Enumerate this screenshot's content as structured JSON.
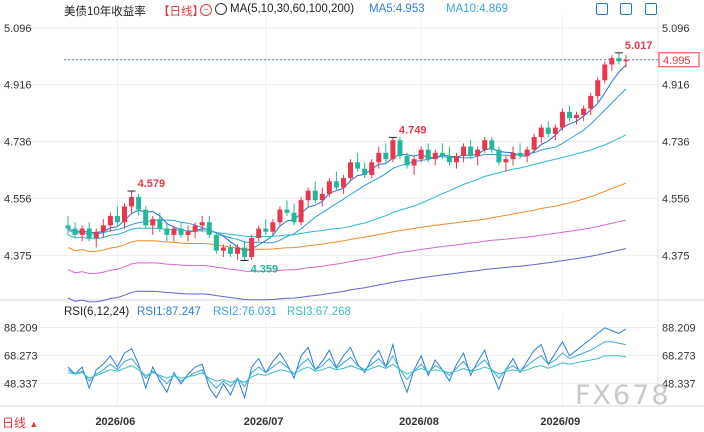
{
  "header": {
    "title": "美债10年收益率",
    "period_tag": "【日线】",
    "ma_label": "MA(5,10,30,60,100,200)",
    "ma5": "MA5:4.953",
    "ma10": "MA10:4.869"
  },
  "rsi_header": {
    "label": "RSI(6,12,24)",
    "rsi1": "RSI1:87.247",
    "rsi2": "RSI2:76.031",
    "rsi3": "RSI3:67.268"
  },
  "footer": {
    "tab": "日线",
    "watermark": "FX678"
  },
  "colors": {
    "up": "#e8374e",
    "down": "#25b79c",
    "ma5": "#1f6fd1",
    "ma10": "#2f9bd8",
    "ma30": "#2fb7c7",
    "ma60": "#ef8a2c",
    "ma100": "#d667cf",
    "ma200": "#6363d8",
    "rsi1": "#2a7fd4",
    "rsi2": "#3aa6dc",
    "rsi3": "#39bfc4"
  },
  "icons": [
    "fullscreen-icon",
    "grid-icon",
    "settings-icon",
    "expand-icon"
  ],
  "chart_data": [
    {
      "type": "candlestick",
      "title": "美债10年收益率",
      "ylim": [
        4.24,
        5.14
      ],
      "y_ticks": [
        "5.096",
        "4.916",
        "4.736",
        "4.556",
        "4.375"
      ],
      "x_ticks": [
        "2026/06",
        "2026/07",
        "2026/08",
        "2026/09"
      ],
      "last_value": "4.995",
      "annotations": [
        {
          "label": "5.017",
          "index": 78
        },
        {
          "label": "4.749",
          "index": 46
        },
        {
          "label": "4.579",
          "index": 9
        },
        {
          "label": "4.359",
          "index": 25
        }
      ],
      "ohlc": [
        [
          4.47,
          4.5,
          4.44,
          4.46
        ],
        [
          4.46,
          4.48,
          4.43,
          4.44
        ],
        [
          4.44,
          4.47,
          4.42,
          4.46
        ],
        [
          4.46,
          4.48,
          4.42,
          4.43
        ],
        [
          4.43,
          4.46,
          4.4,
          4.45
        ],
        [
          4.45,
          4.49,
          4.43,
          4.47
        ],
        [
          4.47,
          4.51,
          4.45,
          4.5
        ],
        [
          4.5,
          4.53,
          4.47,
          4.48
        ],
        [
          4.48,
          4.54,
          4.46,
          4.53
        ],
        [
          4.53,
          4.579,
          4.51,
          4.56
        ],
        [
          4.56,
          4.57,
          4.5,
          4.52
        ],
        [
          4.52,
          4.53,
          4.46,
          4.47
        ],
        [
          4.47,
          4.5,
          4.44,
          4.49
        ],
        [
          4.49,
          4.51,
          4.45,
          4.46
        ],
        [
          4.46,
          4.48,
          4.42,
          4.44
        ],
        [
          4.44,
          4.47,
          4.42,
          4.46
        ],
        [
          4.46,
          4.48,
          4.43,
          4.44
        ],
        [
          4.44,
          4.47,
          4.42,
          4.45
        ],
        [
          4.45,
          4.48,
          4.43,
          4.47
        ],
        [
          4.47,
          4.5,
          4.45,
          4.48
        ],
        [
          4.48,
          4.5,
          4.43,
          4.44
        ],
        [
          4.44,
          4.45,
          4.38,
          4.39
        ],
        [
          4.39,
          4.41,
          4.37,
          4.4
        ],
        [
          4.4,
          4.41,
          4.37,
          4.38
        ],
        [
          4.38,
          4.41,
          4.36,
          4.4
        ],
        [
          4.4,
          4.42,
          4.359,
          4.37
        ],
        [
          4.37,
          4.44,
          4.36,
          4.43
        ],
        [
          4.43,
          4.47,
          4.42,
          4.46
        ],
        [
          4.46,
          4.49,
          4.44,
          4.45
        ],
        [
          4.45,
          4.49,
          4.44,
          4.48
        ],
        [
          4.48,
          4.53,
          4.47,
          4.52
        ],
        [
          4.52,
          4.55,
          4.5,
          4.51
        ],
        [
          4.51,
          4.54,
          4.47,
          4.48
        ],
        [
          4.48,
          4.56,
          4.47,
          4.55
        ],
        [
          4.55,
          4.59,
          4.53,
          4.58
        ],
        [
          4.58,
          4.61,
          4.54,
          4.55
        ],
        [
          4.55,
          4.59,
          4.53,
          4.57
        ],
        [
          4.57,
          4.62,
          4.56,
          4.61
        ],
        [
          4.61,
          4.64,
          4.58,
          4.59
        ],
        [
          4.59,
          4.63,
          4.57,
          4.62
        ],
        [
          4.62,
          4.68,
          4.61,
          4.67
        ],
        [
          4.67,
          4.7,
          4.64,
          4.65
        ],
        [
          4.65,
          4.67,
          4.62,
          4.63
        ],
        [
          4.63,
          4.68,
          4.62,
          4.67
        ],
        [
          4.67,
          4.72,
          4.65,
          4.7
        ],
        [
          4.7,
          4.73,
          4.67,
          4.68
        ],
        [
          4.68,
          4.749,
          4.67,
          4.74
        ],
        [
          4.74,
          4.75,
          4.68,
          4.69
        ],
        [
          4.69,
          4.7,
          4.65,
          4.66
        ],
        [
          4.66,
          4.69,
          4.63,
          4.68
        ],
        [
          4.68,
          4.72,
          4.67,
          4.71
        ],
        [
          4.71,
          4.73,
          4.67,
          4.68
        ],
        [
          4.68,
          4.71,
          4.66,
          4.7
        ],
        [
          4.7,
          4.73,
          4.68,
          4.69
        ],
        [
          4.69,
          4.72,
          4.66,
          4.67
        ],
        [
          4.67,
          4.7,
          4.65,
          4.69
        ],
        [
          4.69,
          4.73,
          4.67,
          4.72
        ],
        [
          4.72,
          4.74,
          4.68,
          4.69
        ],
        [
          4.69,
          4.72,
          4.66,
          4.71
        ],
        [
          4.71,
          4.75,
          4.7,
          4.74
        ],
        [
          4.74,
          4.75,
          4.7,
          4.71
        ],
        [
          4.71,
          4.72,
          4.66,
          4.67
        ],
        [
          4.67,
          4.69,
          4.64,
          4.68
        ],
        [
          4.68,
          4.72,
          4.66,
          4.7
        ],
        [
          4.7,
          4.73,
          4.68,
          4.69
        ],
        [
          4.69,
          4.72,
          4.67,
          4.71
        ],
        [
          4.71,
          4.76,
          4.7,
          4.75
        ],
        [
          4.75,
          4.79,
          4.73,
          4.78
        ],
        [
          4.78,
          4.8,
          4.75,
          4.76
        ],
        [
          4.76,
          4.79,
          4.74,
          4.78
        ],
        [
          4.78,
          4.84,
          4.77,
          4.83
        ],
        [
          4.83,
          4.85,
          4.8,
          4.81
        ],
        [
          4.81,
          4.83,
          4.79,
          4.82
        ],
        [
          4.82,
          4.85,
          4.8,
          4.84
        ],
        [
          4.84,
          4.89,
          4.82,
          4.88
        ],
        [
          4.88,
          4.94,
          4.86,
          4.93
        ],
        [
          4.93,
          4.99,
          4.92,
          4.98
        ],
        [
          4.98,
          5.01,
          4.96,
          5.0
        ],
        [
          5.0,
          5.017,
          4.98,
          4.99
        ],
        [
          4.99,
          5.01,
          4.97,
          4.995
        ]
      ]
    },
    {
      "type": "line",
      "title": "RSI(6,12,24)",
      "ylim": [
        35,
        95
      ],
      "y_ticks": [
        "88.209",
        "68.273",
        "48.337"
      ],
      "series": [
        {
          "name": "RSI1",
          "values": [
            60,
            55,
            60,
            45,
            58,
            62,
            68,
            60,
            70,
            73,
            62,
            45,
            60,
            50,
            42,
            56,
            48,
            55,
            60,
            62,
            45,
            38,
            48,
            40,
            52,
            38,
            60,
            66,
            56,
            64,
            70,
            62,
            52,
            68,
            74,
            58,
            64,
            72,
            60,
            68,
            74,
            62,
            56,
            66,
            72,
            60,
            76,
            55,
            42,
            58,
            68,
            54,
            65,
            58,
            50,
            62,
            70,
            54,
            64,
            72,
            56,
            44,
            58,
            66,
            56,
            64,
            72,
            76,
            62,
            70,
            78,
            68,
            72,
            76,
            80,
            84,
            88,
            86,
            84,
            87.247
          ]
        },
        {
          "name": "RSI2",
          "values": [
            58,
            55,
            57,
            50,
            55,
            58,
            62,
            58,
            64,
            66,
            60,
            52,
            57,
            53,
            48,
            54,
            50,
            53,
            56,
            58,
            50,
            45,
            50,
            46,
            52,
            46,
            56,
            60,
            56,
            60,
            64,
            60,
            55,
            62,
            66,
            58,
            61,
            66,
            59,
            63,
            67,
            61,
            58,
            62,
            66,
            60,
            68,
            58,
            51,
            57,
            62,
            56,
            61,
            58,
            54,
            59,
            64,
            57,
            61,
            65,
            58,
            52,
            58,
            61,
            57,
            61,
            65,
            68,
            62,
            65,
            70,
            66,
            68,
            70,
            72,
            75,
            78,
            78,
            77,
            76.031
          ]
        },
        {
          "name": "RSI3",
          "values": [
            56,
            55,
            56,
            52,
            54,
            56,
            58,
            57,
            59,
            61,
            58,
            54,
            56,
            54,
            52,
            54,
            52,
            53,
            54,
            56,
            52,
            50,
            51,
            49,
            51,
            49,
            53,
            55,
            54,
            56,
            58,
            57,
            55,
            58,
            60,
            57,
            58,
            60,
            58,
            59,
            61,
            59,
            57,
            59,
            61,
            59,
            62,
            58,
            55,
            57,
            59,
            57,
            58,
            57,
            56,
            57,
            59,
            57,
            58,
            60,
            58,
            55,
            57,
            58,
            57,
            58,
            60,
            61,
            59,
            61,
            63,
            62,
            63,
            64,
            65,
            66,
            68,
            68,
            68,
            67.268
          ]
        }
      ]
    }
  ]
}
